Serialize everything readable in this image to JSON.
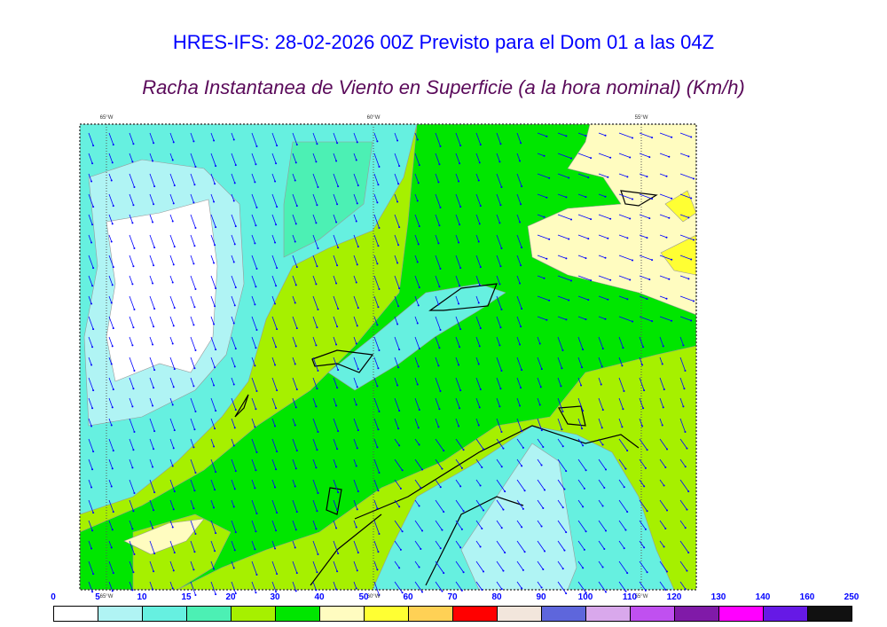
{
  "header": {
    "title": "HRES-IFS: 28-02-2026 00Z Previsto para el Dom 01 a las 04Z",
    "subtitle": "Racha Instantanea de Viento en Superficie (a la hora nominal) (Km/h)"
  },
  "map": {
    "meridians": [
      "65°W",
      "60°W",
      "55°W"
    ],
    "wind_arrow_color": "#0000ff",
    "coastline_color": "#000000"
  },
  "colorbar": {
    "labels": [
      "0",
      "5",
      "10",
      "15",
      "20",
      "30",
      "40",
      "50",
      "60",
      "70",
      "80",
      "90",
      "100",
      "110",
      "120",
      "130",
      "140",
      "160",
      "250"
    ],
    "colors": [
      "#ffffff",
      "#b0f4f4",
      "#66f0e0",
      "#4cf0b4",
      "#a6f000",
      "#00e600",
      "#fffcc0",
      "#ffff33",
      "#ffd155",
      "#ff0000",
      "#f2e6dc",
      "#5e66dc",
      "#d9a8ec",
      "#c050f0",
      "#801aa8",
      "#ff00ff",
      "#6619e6",
      "#111111"
    ]
  }
}
